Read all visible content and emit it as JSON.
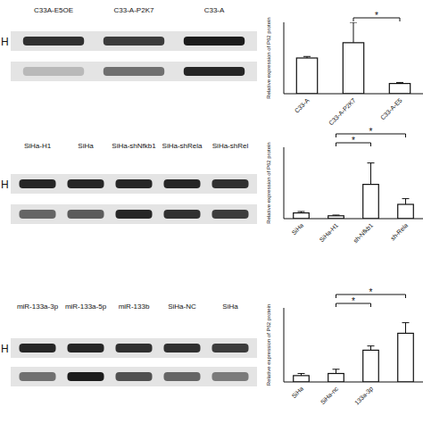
{
  "blots": [
    {
      "lanes": [
        "C33A-E5OE",
        "C33-A-P2K7",
        "C33-A"
      ],
      "row_label": "H",
      "bands": [
        [
          0.85,
          0.8,
          0.95
        ],
        [
          0.2,
          0.55,
          0.9
        ]
      ]
    },
    {
      "lanes": [
        "SiHa-H1",
        "SiHa",
        "SiHa-shNfkb1",
        "SiHa-shRela",
        "SiHa-shRel"
      ],
      "row_label": "H",
      "bands": [
        [
          0.9,
          0.9,
          0.9,
          0.9,
          0.85
        ],
        [
          0.6,
          0.65,
          0.9,
          0.85,
          0.8
        ]
      ]
    },
    {
      "lanes": [
        "miR-133a-3p",
        "miR-133a-5p",
        "miR-133b",
        "SiHa-NC",
        "SiHa"
      ],
      "row_label": "H",
      "bands": [
        [
          0.9,
          0.9,
          0.85,
          0.85,
          0.8
        ],
        [
          0.55,
          0.95,
          0.7,
          0.6,
          0.5
        ]
      ]
    }
  ],
  "chart_data": [
    {
      "type": "bar",
      "y_label": "Relative expression of P62 protein",
      "categories": [
        "C33-A",
        "C33-A-P2K7",
        "C33-A-E5"
      ],
      "values": [
        3.5,
        5.0,
        1.0
      ],
      "errors": [
        0.15,
        2.0,
        0.1
      ],
      "color": "#ffffff",
      "ylim": [
        0,
        7
      ],
      "tick_labels": "x",
      "annotations": [
        {
          "text": "*",
          "between": [
            1,
            2
          ]
        }
      ]
    },
    {
      "type": "bar",
      "y_label": "Relative expression of P62 protein",
      "categories": [
        "SiHa",
        "SiHa-H1",
        "sh-Nfkb1",
        "sh-Rela"
      ],
      "values": [
        0.4,
        0.2,
        2.4,
        1.0
      ],
      "errors": [
        0.1,
        0.05,
        1.5,
        0.4
      ],
      "color": "#ffffff",
      "ylim": [
        0,
        5
      ],
      "tick_labels": "x",
      "annotations": [
        {
          "text": "*",
          "between": [
            1,
            2
          ]
        },
        {
          "text": "*",
          "between": [
            1,
            3
          ]
        }
      ]
    },
    {
      "type": "bar",
      "y_label": "Relative expression of P62 protein",
      "categories": [
        "SiHa",
        "SiHa-nc",
        "133a-3p",
        null
      ],
      "values": [
        0.3,
        0.4,
        1.5,
        2.3
      ],
      "errors": [
        0.1,
        0.2,
        0.2,
        0.5
      ],
      "color": "#ffffff",
      "ylim": [
        0,
        3.5
      ],
      "tick_labels": "x",
      "annotations": [
        {
          "text": "*",
          "between": [
            1,
            2
          ]
        },
        {
          "text": "*",
          "between": [
            1,
            3
          ]
        }
      ]
    }
  ]
}
